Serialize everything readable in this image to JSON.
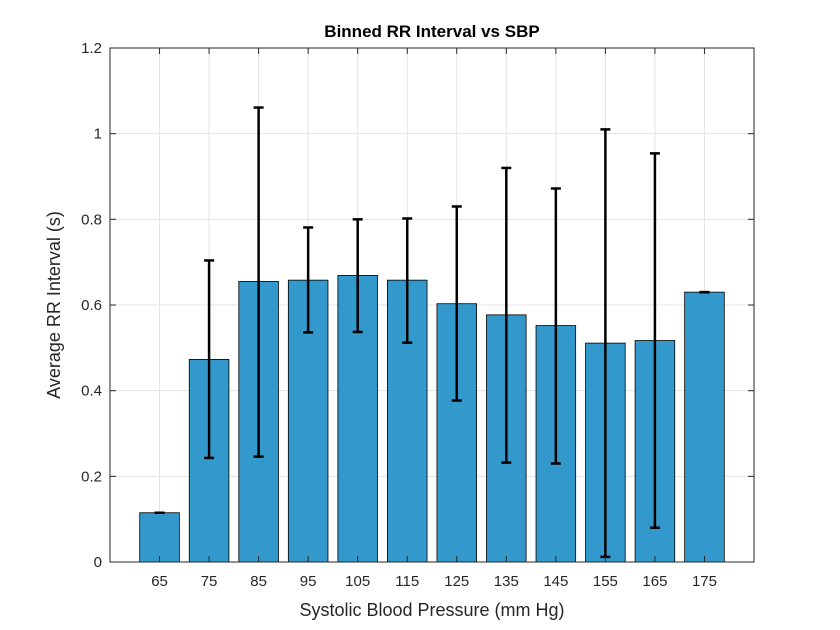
{
  "chart_data": {
    "type": "bar",
    "title": "Binned RR Interval vs SBP",
    "xlabel": "Systolic Blood Pressure (mm Hg)",
    "ylabel": "Average RR Interval (s)",
    "categories": [
      "65",
      "75",
      "85",
      "95",
      "105",
      "115",
      "125",
      "135",
      "145",
      "155",
      "165",
      "175"
    ],
    "values": [
      0.115,
      0.473,
      0.655,
      0.658,
      0.669,
      0.658,
      0.603,
      0.577,
      0.552,
      0.511,
      0.517,
      0.63
    ],
    "error_low": [
      0.115,
      0.243,
      0.246,
      0.536,
      0.537,
      0.512,
      0.377,
      0.232,
      0.23,
      0.012,
      0.08,
      0.63
    ],
    "error_high": [
      0.115,
      0.704,
      1.061,
      0.781,
      0.8,
      0.802,
      0.83,
      0.92,
      0.872,
      1.01,
      0.954,
      0.63
    ],
    "ylim": [
      0,
      1.2
    ],
    "yticks": [
      "0",
      "0.2",
      "0.4",
      "0.6",
      "0.8",
      "1",
      "1.2"
    ],
    "ytick_values": [
      0,
      0.2,
      0.4,
      0.6,
      0.8,
      1.0,
      1.2
    ],
    "grid": true,
    "bar_color": "#3399cc",
    "error_color": "#000000"
  }
}
